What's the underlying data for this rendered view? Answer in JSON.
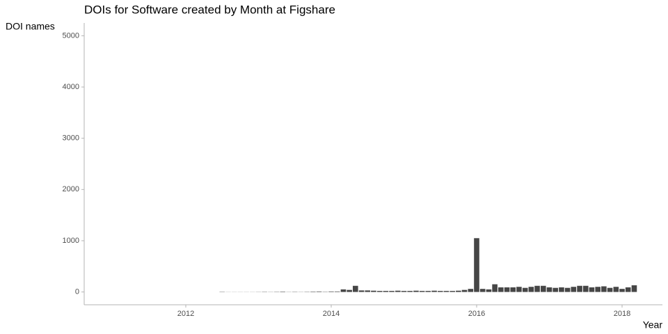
{
  "chart_data": {
    "type": "bar",
    "title": "DOIs for Software created by Month at Figshare",
    "ylabel": "DOI names",
    "xlabel": "Year",
    "x": [
      2012.5,
      2012.583,
      2012.667,
      2012.75,
      2012.833,
      2012.917,
      2013,
      2013.083,
      2013.167,
      2013.25,
      2013.333,
      2013.417,
      2013.5,
      2013.583,
      2013.667,
      2013.75,
      2013.833,
      2013.917,
      2014,
      2014.083,
      2014.167,
      2014.25,
      2014.333,
      2014.417,
      2014.5,
      2014.583,
      2014.667,
      2014.75,
      2014.833,
      2014.917,
      2015,
      2015.083,
      2015.167,
      2015.25,
      2015.333,
      2015.417,
      2015.5,
      2015.583,
      2015.667,
      2015.75,
      2015.833,
      2015.917,
      2016,
      2016.083,
      2016.167,
      2016.25,
      2016.333,
      2016.417,
      2016.5,
      2016.583,
      2016.667,
      2016.75,
      2016.833,
      2016.917,
      2017,
      2017.083,
      2017.167,
      2017.25,
      2017.333,
      2017.417,
      2017.5,
      2017.583,
      2017.667,
      2017.75,
      2017.833,
      2017.917,
      2018,
      2018.083,
      2018.167
    ],
    "values": [
      5,
      2,
      2,
      2,
      2,
      2,
      3,
      5,
      3,
      5,
      8,
      3,
      5,
      3,
      5,
      8,
      10,
      5,
      10,
      10,
      50,
      40,
      120,
      30,
      30,
      25,
      20,
      20,
      20,
      25,
      20,
      20,
      25,
      20,
      20,
      25,
      20,
      20,
      20,
      25,
      40,
      60,
      1050,
      60,
      50,
      150,
      90,
      90,
      90,
      100,
      80,
      100,
      120,
      120,
      90,
      80,
      90,
      80,
      100,
      120,
      120,
      90,
      100,
      110,
      80,
      100,
      60,
      90,
      130
    ],
    "color": "#464646",
    "xlim": [
      2010.603,
      2018.555
    ],
    "xticks": [
      2012,
      2014,
      2016,
      2018
    ],
    "ylim": [
      -250,
      5250
    ],
    "yticks": [
      0,
      1000,
      2000,
      3000,
      4000,
      5000
    ],
    "grid": false
  }
}
